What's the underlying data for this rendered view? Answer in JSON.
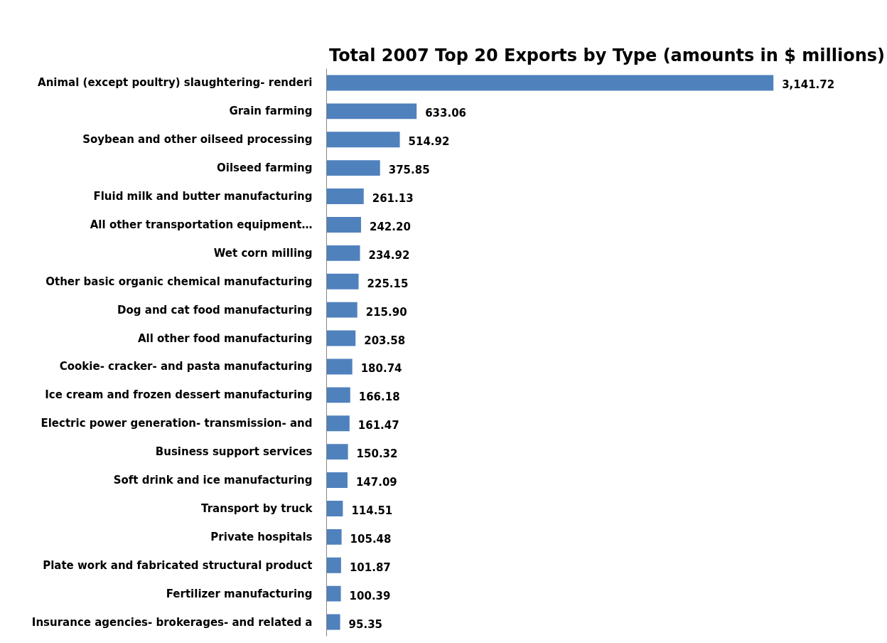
{
  "chart_data": {
    "type": "bar",
    "orientation": "horizontal",
    "title": "Total 2007 Top 20 Exports by Type (amounts in $ millions)",
    "categories": [
      "Animal (except poultry) slaughtering- renderi",
      "Grain farming",
      "Soybean and other oilseed processing",
      "Oilseed farming",
      "Fluid milk and butter manufacturing",
      "All other transportation equipment…",
      "Wet corn milling",
      "Other basic organic chemical manufacturing",
      "Dog and cat food manufacturing",
      "All other food manufacturing",
      "Cookie- cracker- and pasta manufacturing",
      "Ice cream and frozen dessert manufacturing",
      "Electric power generation- transmission- and",
      "Business support services",
      "Soft drink and ice manufacturing",
      "Transport by truck",
      "Private hospitals",
      "Plate work and fabricated structural product",
      "Fertilizer manufacturing",
      "Insurance agencies- brokerages- and related a"
    ],
    "values": [
      3141.72,
      633.06,
      514.92,
      375.85,
      261.13,
      242.2,
      234.92,
      225.15,
      215.9,
      203.58,
      180.74,
      166.18,
      161.47,
      150.32,
      147.09,
      114.51,
      105.48,
      101.87,
      100.39,
      95.35
    ],
    "value_labels": [
      "3,141.72",
      "633.06",
      "514.92",
      "375.85",
      "261.13",
      "242.20",
      "234.92",
      "225.15",
      "215.90",
      "203.58",
      "180.74",
      "166.18",
      "161.47",
      "150.32",
      "147.09",
      "114.51",
      "105.48",
      "101.87",
      "100.39",
      "95.35"
    ],
    "color": "#4f81bd"
  }
}
